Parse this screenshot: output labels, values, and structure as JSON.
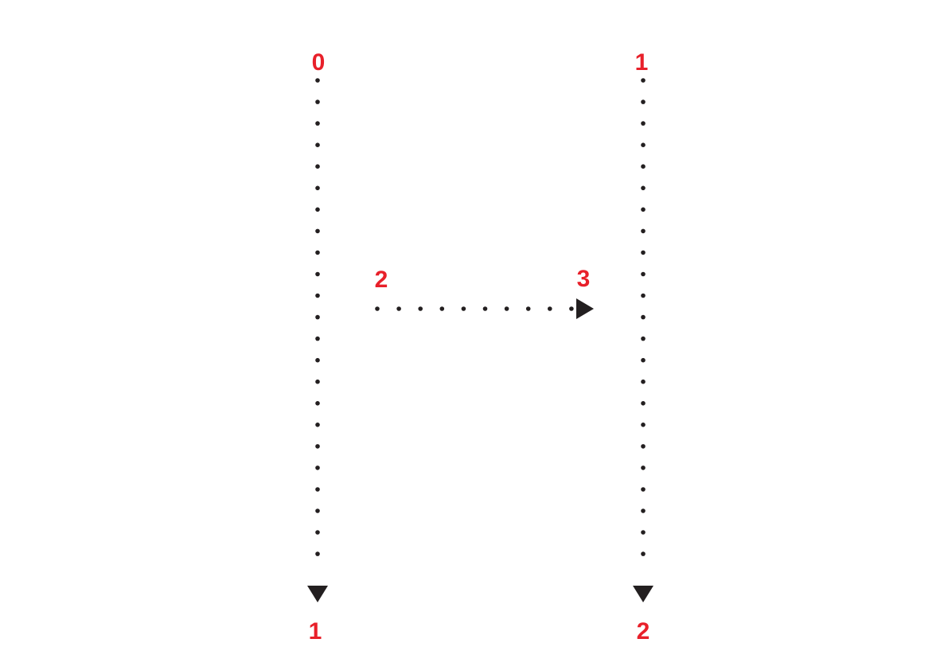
{
  "letter": "H",
  "colors": {
    "label": "#e8202a",
    "stroke": "#231f20",
    "background": "#ffffff"
  },
  "strokes": [
    {
      "id": "left-vertical",
      "direction": "down",
      "start_label": "0",
      "end_label": "1"
    },
    {
      "id": "right-vertical",
      "direction": "down",
      "start_label": "1",
      "end_label": "2"
    },
    {
      "id": "crossbar",
      "direction": "right",
      "start_label": "2",
      "end_label": "3"
    }
  ]
}
